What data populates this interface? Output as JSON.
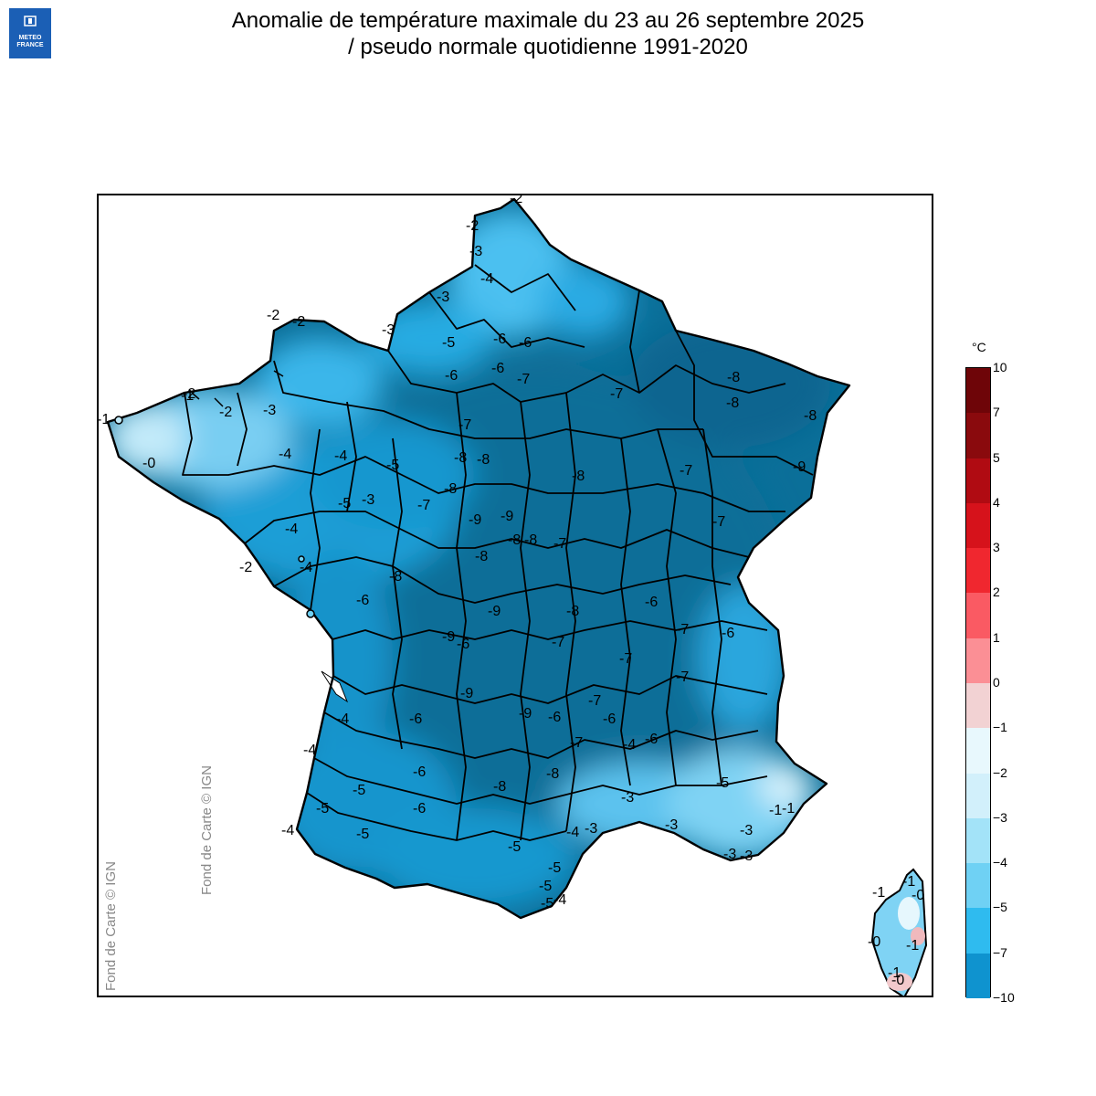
{
  "header": {
    "logo_line1": "METEO",
    "logo_line2": "FRANCE",
    "title_line1": "Anomalie de température maximale du 23 au 26 septembre 2025",
    "title_line2": "/ pseudo normale quotidienne 1991-2020"
  },
  "credits": {
    "credit_1": "Fond de Carte © IGN",
    "credit_2": "Fond de Carte © IGN"
  },
  "legend": {
    "unit": "°C",
    "ticks": [
      "10",
      "7",
      "5",
      "4",
      "3",
      "2",
      "1",
      "0",
      "−1",
      "−2",
      "−3",
      "−4",
      "−5",
      "−7",
      "−10"
    ],
    "colors": [
      "#6e0508",
      "#8a0a0d",
      "#b00b12",
      "#d6121b",
      "#f0272f",
      "#fa5a63",
      "#fb8f95",
      "#f2d2d3",
      "#e8f8fd",
      "#d2f0fb",
      "#a3e3f8",
      "#6fd1f4",
      "#2fbbef",
      "#0f93cf",
      "#0a6e98"
    ]
  },
  "map": {
    "land_base_color": "#0a6e98",
    "labels": [
      {
        "text": "-2"
      },
      {
        "text": "-2"
      },
      {
        "text": "-3"
      },
      {
        "text": "-4"
      },
      {
        "text": "-3"
      },
      {
        "text": "-2"
      },
      {
        "text": "-2"
      },
      {
        "text": "-3"
      },
      {
        "text": "-1"
      },
      {
        "text": "-1"
      },
      {
        "text": "-2"
      },
      {
        "text": "-2"
      },
      {
        "text": "-3"
      },
      {
        "text": "-0"
      },
      {
        "text": "-4"
      },
      {
        "text": "-4"
      },
      {
        "text": "-5"
      },
      {
        "text": "-5"
      },
      {
        "text": "-3"
      },
      {
        "text": "-4"
      },
      {
        "text": "-4"
      },
      {
        "text": "-2"
      },
      {
        "text": "-5"
      },
      {
        "text": "-6"
      },
      {
        "text": "-6"
      },
      {
        "text": "-6"
      },
      {
        "text": "-6"
      },
      {
        "text": "-7"
      },
      {
        "text": "-8"
      },
      {
        "text": "-8"
      },
      {
        "text": "-7"
      },
      {
        "text": "-8"
      },
      {
        "text": "-9"
      },
      {
        "text": "-8"
      },
      {
        "text": "-8"
      },
      {
        "text": "-9"
      },
      {
        "text": "-9"
      },
      {
        "text": "-9"
      },
      {
        "text": "-9"
      },
      {
        "text": "-8"
      },
      {
        "text": "-8"
      },
      {
        "text": "-6"
      },
      {
        "text": "-7"
      },
      {
        "text": "-6"
      },
      {
        "text": "-7"
      },
      {
        "text": "-8"
      },
      {
        "text": "-8"
      },
      {
        "text": "-8"
      },
      {
        "text": "-8"
      },
      {
        "text": "-9"
      },
      {
        "text": "-9"
      },
      {
        "text": "-8"
      },
      {
        "text": "-7"
      },
      {
        "text": "-7"
      },
      {
        "text": "-7"
      },
      {
        "text": "-6"
      },
      {
        "text": "-7"
      },
      {
        "text": "-7"
      },
      {
        "text": "-7"
      },
      {
        "text": "-7"
      },
      {
        "text": "-6"
      },
      {
        "text": "-4"
      },
      {
        "text": "-5"
      },
      {
        "text": "-6"
      },
      {
        "text": "-6"
      },
      {
        "text": "-5"
      },
      {
        "text": "-4"
      },
      {
        "text": "-4"
      },
      {
        "text": "-5"
      },
      {
        "text": "-6"
      },
      {
        "text": "-5"
      },
      {
        "text": "-3"
      },
      {
        "text": "-3"
      },
      {
        "text": "-3"
      },
      {
        "text": "-3"
      },
      {
        "text": "-1"
      },
      {
        "text": "-1"
      },
      {
        "text": "-4"
      },
      {
        "text": "-3"
      },
      {
        "text": "-5"
      },
      {
        "text": "-5"
      },
      {
        "text": "-4"
      },
      {
        "text": "-5"
      },
      {
        "text": "-6"
      },
      {
        "text": "-6"
      },
      {
        "text": "-8"
      },
      {
        "text": "-8"
      },
      {
        "text": "-7"
      },
      {
        "text": "-4"
      },
      {
        "text": "-3"
      },
      {
        "text": "-1"
      },
      {
        "text": "-1"
      },
      {
        "text": "-0"
      },
      {
        "text": "-1"
      },
      {
        "text": "-0"
      },
      {
        "text": "-1"
      },
      {
        "text": "-0"
      },
      {
        "text": "-7"
      },
      {
        "text": "-5"
      },
      {
        "text": "-6"
      }
    ]
  }
}
